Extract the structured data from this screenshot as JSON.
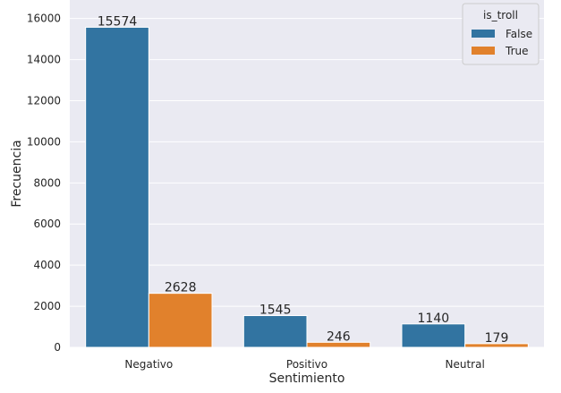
{
  "colors": {
    "plot_background": "#eaeaf2",
    "grid": "#ffffff",
    "text": "#262626"
  },
  "chart_data": {
    "type": "bar",
    "categories": [
      "Negativo",
      "Positivo",
      "Neutral"
    ],
    "series": [
      {
        "name": "False",
        "values": [
          15574,
          1545,
          1140
        ],
        "color": "#3274a1"
      },
      {
        "name": "True",
        "values": [
          2628,
          246,
          179
        ],
        "color": "#e1812c"
      }
    ],
    "xlabel": "Sentimiento",
    "ylabel": "Frecuencia",
    "ylim": [
      0,
      16900
    ],
    "yticks": [
      0,
      2000,
      4000,
      6000,
      8000,
      10000,
      12000,
      14000,
      16000
    ],
    "legend": {
      "title": "is_troll",
      "position": "top-right"
    },
    "grid": true,
    "data_labels": true
  }
}
